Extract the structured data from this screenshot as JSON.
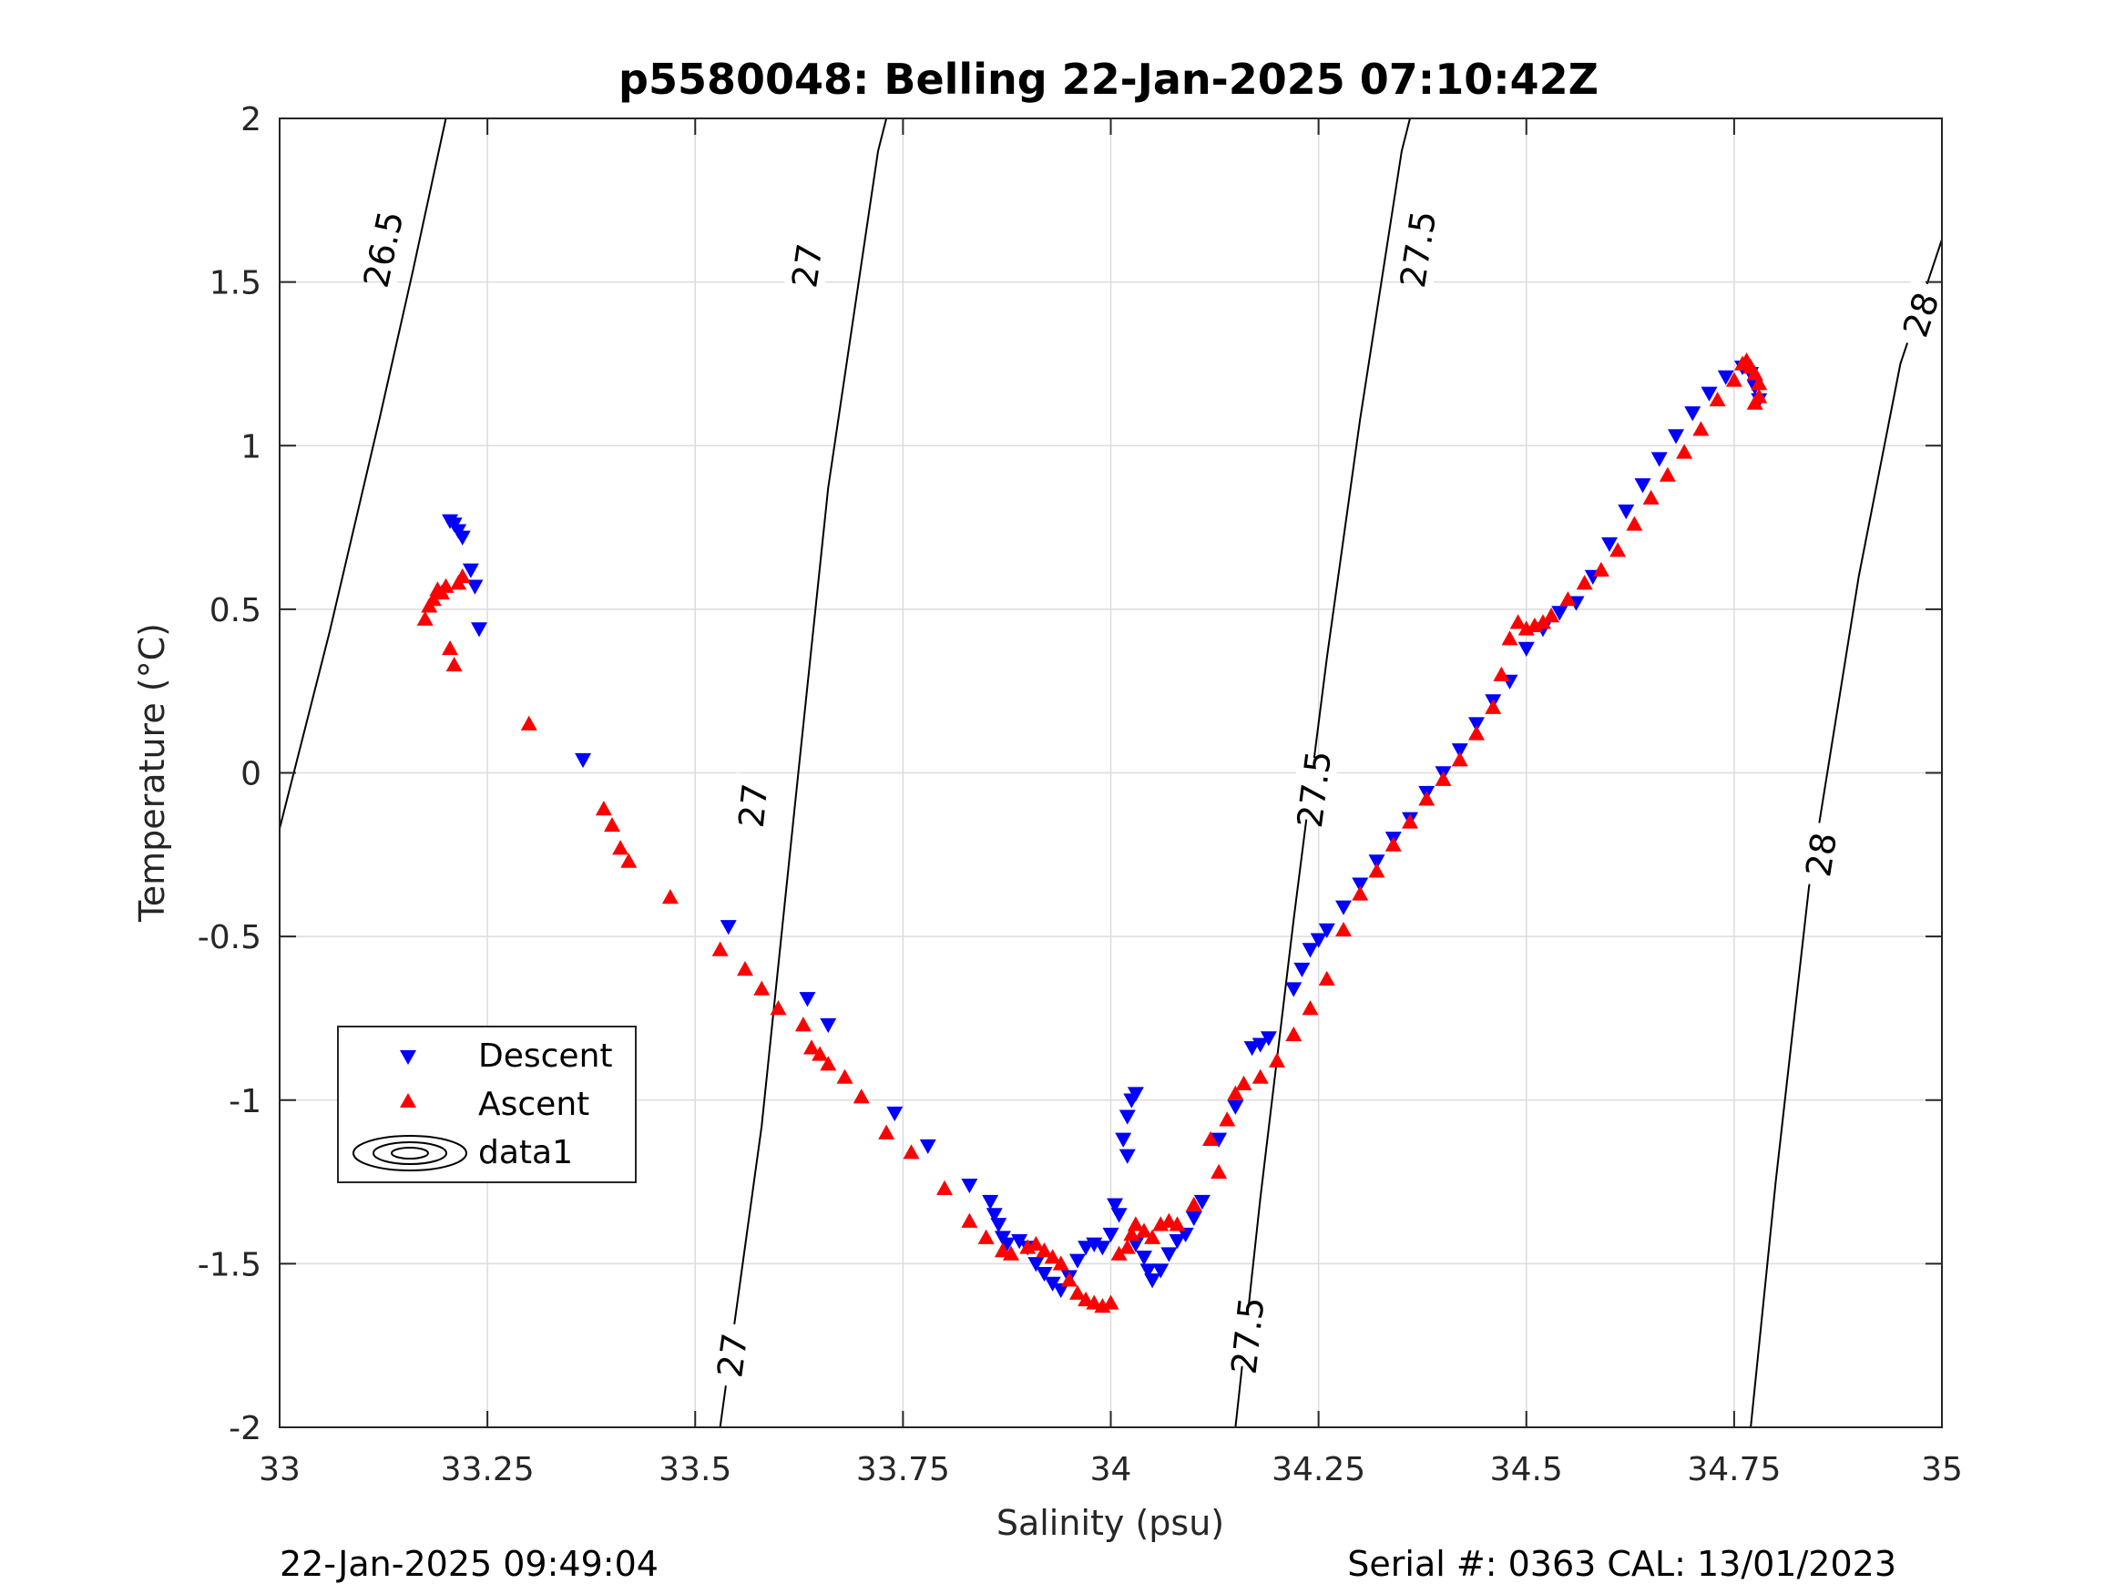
{
  "chart_data": {
    "type": "scatter",
    "title": "p5580048: Belling 22-Jan-2025 07:10:42Z",
    "xlabel": "Salinity (psu)",
    "ylabel": "Temperature (°C)",
    "xlim": [
      33,
      35
    ],
    "ylim": [
      -2,
      2
    ],
    "xticks": [
      33,
      33.25,
      33.5,
      33.75,
      34,
      34.25,
      34.5,
      34.75,
      35
    ],
    "xtick_labels": [
      "33",
      "33.25",
      "33.5",
      "33.75",
      "34",
      "34.25",
      "34.5",
      "34.75",
      "35"
    ],
    "yticks": [
      -2,
      -1.5,
      -1,
      -0.5,
      0,
      0.5,
      1,
      1.5,
      2
    ],
    "ytick_labels": [
      "-2",
      "-1.5",
      "-1",
      "-0.5",
      "0",
      "0.5",
      "1",
      "1.5",
      "2"
    ],
    "grid": true,
    "legend": {
      "placement": "lower-left",
      "entries": [
        "Descent",
        "Ascent",
        "data1"
      ]
    },
    "series": [
      {
        "name": "Descent",
        "marker": "triangle-down",
        "color": "#0000ff",
        "points": [
          [
            33.205,
            0.77
          ],
          [
            33.21,
            0.76
          ],
          [
            33.215,
            0.74
          ],
          [
            33.22,
            0.72
          ],
          [
            33.23,
            0.62
          ],
          [
            33.235,
            0.57
          ],
          [
            33.24,
            0.44
          ],
          [
            33.365,
            0.04
          ],
          [
            33.54,
            -0.47
          ],
          [
            33.635,
            -0.69
          ],
          [
            33.66,
            -0.77
          ],
          [
            33.74,
            -1.04
          ],
          [
            33.78,
            -1.14
          ],
          [
            33.83,
            -1.26
          ],
          [
            33.855,
            -1.31
          ],
          [
            33.86,
            -1.35
          ],
          [
            33.865,
            -1.38
          ],
          [
            33.87,
            -1.42
          ],
          [
            33.875,
            -1.44
          ],
          [
            33.89,
            -1.43
          ],
          [
            33.9,
            -1.45
          ],
          [
            33.91,
            -1.5
          ],
          [
            33.92,
            -1.53
          ],
          [
            33.93,
            -1.56
          ],
          [
            33.94,
            -1.58
          ],
          [
            33.95,
            -1.54
          ],
          [
            33.96,
            -1.49
          ],
          [
            33.97,
            -1.45
          ],
          [
            33.98,
            -1.44
          ],
          [
            33.99,
            -1.45
          ],
          [
            34.0,
            -1.41
          ],
          [
            34.005,
            -1.32
          ],
          [
            34.01,
            -1.35
          ],
          [
            34.015,
            -1.12
          ],
          [
            34.02,
            -1.05
          ],
          [
            34.025,
            -1.0
          ],
          [
            34.03,
            -0.98
          ],
          [
            34.02,
            -1.17
          ],
          [
            34.03,
            -1.44
          ],
          [
            34.04,
            -1.48
          ],
          [
            34.045,
            -1.52
          ],
          [
            34.05,
            -1.55
          ],
          [
            34.06,
            -1.52
          ],
          [
            34.07,
            -1.47
          ],
          [
            34.08,
            -1.43
          ],
          [
            34.09,
            -1.41
          ],
          [
            34.1,
            -1.36
          ],
          [
            34.11,
            -1.31
          ],
          [
            34.13,
            -1.12
          ],
          [
            34.15,
            -1.02
          ],
          [
            34.17,
            -0.84
          ],
          [
            34.18,
            -0.83
          ],
          [
            34.19,
            -0.81
          ],
          [
            34.22,
            -0.66
          ],
          [
            34.23,
            -0.6
          ],
          [
            34.24,
            -0.54
          ],
          [
            34.25,
            -0.51
          ],
          [
            34.26,
            -0.48
          ],
          [
            34.28,
            -0.41
          ],
          [
            34.3,
            -0.34
          ],
          [
            34.32,
            -0.27
          ],
          [
            34.34,
            -0.2
          ],
          [
            34.36,
            -0.14
          ],
          [
            34.38,
            -0.06
          ],
          [
            34.4,
            0.0
          ],
          [
            34.42,
            0.07
          ],
          [
            34.44,
            0.15
          ],
          [
            34.46,
            0.22
          ],
          [
            34.48,
            0.28
          ],
          [
            34.5,
            0.38
          ],
          [
            34.52,
            0.44
          ],
          [
            34.54,
            0.49
          ],
          [
            34.56,
            0.52
          ],
          [
            34.58,
            0.6
          ],
          [
            34.6,
            0.7
          ],
          [
            34.62,
            0.8
          ],
          [
            34.64,
            0.88
          ],
          [
            34.66,
            0.96
          ],
          [
            34.68,
            1.03
          ],
          [
            34.7,
            1.1
          ],
          [
            34.72,
            1.16
          ],
          [
            34.74,
            1.21
          ],
          [
            34.76,
            1.24
          ],
          [
            34.77,
            1.22
          ],
          [
            34.775,
            1.18
          ],
          [
            34.78,
            1.14
          ]
        ]
      },
      {
        "name": "Ascent",
        "marker": "triangle-up",
        "color": "#ff0000",
        "points": [
          [
            33.175,
            0.47
          ],
          [
            33.18,
            0.51
          ],
          [
            33.185,
            0.53
          ],
          [
            33.19,
            0.56
          ],
          [
            33.195,
            0.55
          ],
          [
            33.2,
            0.57
          ],
          [
            33.205,
            0.38
          ],
          [
            33.21,
            0.33
          ],
          [
            33.215,
            0.58
          ],
          [
            33.22,
            0.6
          ],
          [
            33.3,
            0.15
          ],
          [
            33.39,
            -0.11
          ],
          [
            33.4,
            -0.16
          ],
          [
            33.41,
            -0.23
          ],
          [
            33.42,
            -0.27
          ],
          [
            33.47,
            -0.38
          ],
          [
            33.53,
            -0.54
          ],
          [
            33.56,
            -0.6
          ],
          [
            33.58,
            -0.66
          ],
          [
            33.6,
            -0.72
          ],
          [
            33.63,
            -0.77
          ],
          [
            33.64,
            -0.84
          ],
          [
            33.65,
            -0.86
          ],
          [
            33.66,
            -0.89
          ],
          [
            33.68,
            -0.93
          ],
          [
            33.7,
            -0.99
          ],
          [
            33.73,
            -1.1
          ],
          [
            33.76,
            -1.16
          ],
          [
            33.8,
            -1.27
          ],
          [
            33.83,
            -1.37
          ],
          [
            33.85,
            -1.42
          ],
          [
            33.87,
            -1.46
          ],
          [
            33.88,
            -1.47
          ],
          [
            33.9,
            -1.45
          ],
          [
            33.91,
            -1.44
          ],
          [
            33.92,
            -1.46
          ],
          [
            33.93,
            -1.48
          ],
          [
            33.94,
            -1.5
          ],
          [
            33.95,
            -1.55
          ],
          [
            33.96,
            -1.59
          ],
          [
            33.97,
            -1.61
          ],
          [
            33.98,
            -1.62
          ],
          [
            33.99,
            -1.63
          ],
          [
            34.0,
            -1.62
          ],
          [
            34.01,
            -1.47
          ],
          [
            34.02,
            -1.45
          ],
          [
            34.025,
            -1.41
          ],
          [
            34.03,
            -1.38
          ],
          [
            34.04,
            -1.4
          ],
          [
            34.05,
            -1.42
          ],
          [
            34.06,
            -1.38
          ],
          [
            34.07,
            -1.37
          ],
          [
            34.08,
            -1.38
          ],
          [
            34.1,
            -1.32
          ],
          [
            34.12,
            -1.12
          ],
          [
            34.13,
            -1.22
          ],
          [
            34.14,
            -1.06
          ],
          [
            34.15,
            -0.98
          ],
          [
            34.16,
            -0.95
          ],
          [
            34.18,
            -0.93
          ],
          [
            34.2,
            -0.88
          ],
          [
            34.22,
            -0.8
          ],
          [
            34.24,
            -0.72
          ],
          [
            34.26,
            -0.63
          ],
          [
            34.28,
            -0.48
          ],
          [
            34.3,
            -0.37
          ],
          [
            34.32,
            -0.3
          ],
          [
            34.34,
            -0.22
          ],
          [
            34.36,
            -0.15
          ],
          [
            34.38,
            -0.08
          ],
          [
            34.4,
            -0.02
          ],
          [
            34.42,
            0.04
          ],
          [
            34.44,
            0.12
          ],
          [
            34.46,
            0.2
          ],
          [
            34.47,
            0.3
          ],
          [
            34.48,
            0.41
          ],
          [
            34.49,
            0.46
          ],
          [
            34.5,
            0.44
          ],
          [
            34.51,
            0.45
          ],
          [
            34.52,
            0.46
          ],
          [
            34.53,
            0.48
          ],
          [
            34.55,
            0.53
          ],
          [
            34.57,
            0.58
          ],
          [
            34.59,
            0.62
          ],
          [
            34.61,
            0.68
          ],
          [
            34.63,
            0.76
          ],
          [
            34.65,
            0.84
          ],
          [
            34.67,
            0.91
          ],
          [
            34.69,
            0.98
          ],
          [
            34.71,
            1.05
          ],
          [
            34.73,
            1.14
          ],
          [
            34.75,
            1.2
          ],
          [
            34.76,
            1.25
          ],
          [
            34.765,
            1.26
          ],
          [
            34.77,
            1.24
          ],
          [
            34.775,
            1.22
          ],
          [
            34.78,
            1.19
          ],
          [
            34.78,
            1.15
          ],
          [
            34.775,
            1.13
          ]
        ]
      }
    ],
    "contours": [
      {
        "label": "26.5",
        "points": [
          [
            33.0,
            -0.17
          ],
          [
            33.06,
            0.43
          ],
          [
            33.12,
            1.08
          ],
          [
            33.16,
            1.53
          ],
          [
            33.2,
            2.0
          ]
        ],
        "label_positions": [
          [
            33.125,
            1.6
          ]
        ]
      },
      {
        "label": "27",
        "points": [
          [
            33.53,
            -2.0
          ],
          [
            33.58,
            -1.08
          ],
          [
            33.62,
            -0.1
          ],
          [
            33.66,
            0.87
          ],
          [
            33.72,
            1.9
          ],
          [
            33.73,
            2.0
          ]
        ],
        "label_positions": [
          [
            33.635,
            1.55
          ],
          [
            33.57,
            -0.1
          ],
          [
            33.545,
            -1.78
          ]
        ]
      },
      {
        "label": "27.5",
        "points": [
          [
            34.15,
            -2.0
          ],
          [
            34.18,
            -1.3
          ],
          [
            34.22,
            -0.45
          ],
          [
            34.26,
            0.35
          ],
          [
            34.3,
            1.08
          ],
          [
            34.35,
            1.9
          ],
          [
            34.36,
            2.0
          ]
        ],
        "label_positions": [
          [
            34.37,
            1.6
          ],
          [
            34.245,
            -0.05
          ],
          [
            34.165,
            -1.72
          ]
        ]
      },
      {
        "label": "28",
        "points": [
          [
            34.77,
            -2.0
          ],
          [
            34.8,
            -1.25
          ],
          [
            34.84,
            -0.35
          ],
          [
            34.9,
            0.6
          ],
          [
            34.95,
            1.25
          ],
          [
            35.0,
            1.63
          ]
        ],
        "label_positions": [
          [
            34.975,
            1.4
          ],
          [
            34.855,
            -0.25
          ]
        ]
      }
    ]
  },
  "footer": {
    "date": "22-Jan-2025 09:49:04",
    "serial": "Serial #: 0363  CAL: 13/01/2023"
  }
}
